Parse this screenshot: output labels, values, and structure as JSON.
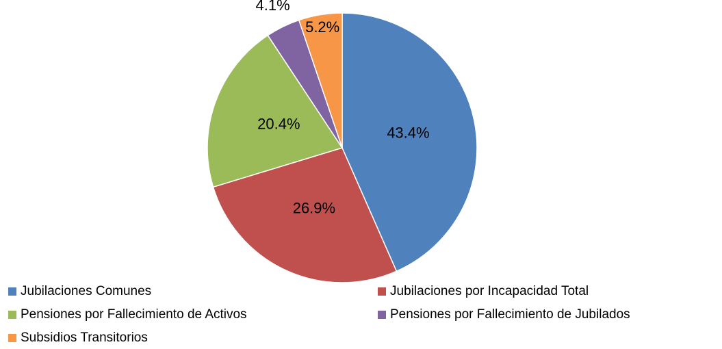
{
  "chart_data": {
    "type": "pie",
    "categories": [
      "Jubilaciones Comunes",
      "Jubilaciones por Incapacidad Total",
      "Pensiones por Fallecimiento de Activos",
      "Pensiones por Fallecimiento de Jubilados",
      "Subsidios Transitorios"
    ],
    "values": [
      43.4,
      26.9,
      20.4,
      4.1,
      5.2
    ],
    "value_labels": [
      "43.4%",
      "26.9%",
      "20.4%",
      "4.1%",
      "5.2%"
    ],
    "colors": [
      "#4f81bd",
      "#c0504d",
      "#9bbb59",
      "#8064a2",
      "#f79646"
    ],
    "legend": "bottom"
  }
}
